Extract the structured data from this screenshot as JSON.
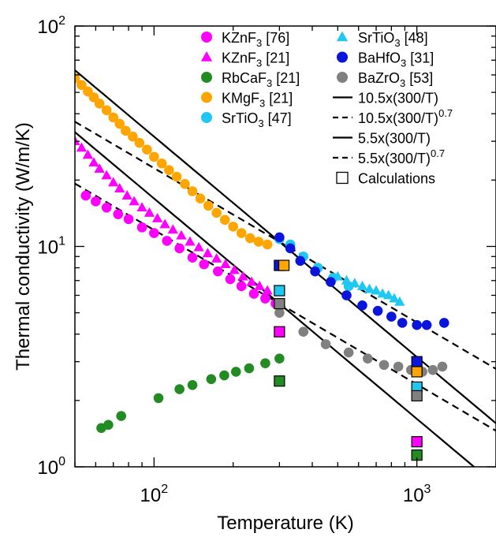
{
  "chart_data": {
    "type": "scatter",
    "xscale": "log",
    "yscale": "log",
    "xlim": [
      50,
      2000
    ],
    "ylim": [
      1,
      100
    ],
    "xlabel": "Temperature (K)",
    "ylabel": "Thermal conductivity (W/m/K)",
    "x_ticks": [
      {
        "value": 100,
        "base": "10",
        "exp": "2"
      },
      {
        "value": 1000,
        "base": "10",
        "exp": "3"
      }
    ],
    "y_ticks": [
      {
        "value": 1,
        "base": "10",
        "exp": "0"
      },
      {
        "value": 10,
        "base": "10",
        "exp": "1"
      },
      {
        "value": 100,
        "base": "10",
        "exp": "2"
      }
    ],
    "grid": false,
    "legend_position": "top-right",
    "series": [
      {
        "name": "KZnF3 [76]",
        "label_main": "KZnF",
        "label_sub": "3",
        "label_ref": " [76]",
        "color": "#ff00ff",
        "marker": "circle",
        "x": [
          55,
          60,
          66,
          73,
          80,
          90,
          100,
          112,
          125,
          140,
          155,
          175,
          195,
          215,
          240,
          265,
          290
        ],
        "y": [
          17,
          16,
          15,
          14,
          13.3,
          12.2,
          11.5,
          10.6,
          9.8,
          8.9,
          8.3,
          7.7,
          7.1,
          6.6,
          6.1,
          5.8,
          5.5
        ]
      },
      {
        "name": "KZnF3 [21]",
        "label_main": "KZnF",
        "label_sub": "3",
        "label_ref": " [21]",
        "color": "#ff00ff",
        "marker": "triangle",
        "x": [
          50,
          53,
          56,
          59,
          62,
          66,
          70,
          74,
          79,
          84,
          90,
          96,
          103,
          110,
          118,
          127,
          137,
          148,
          160,
          173,
          187,
          202,
          218,
          235,
          252,
          270
        ],
        "y": [
          30,
          28,
          26,
          24,
          22.5,
          21,
          19.5,
          18.3,
          17,
          16,
          15,
          14.2,
          13.4,
          12.6,
          11.9,
          11.2,
          10.5,
          9.9,
          9.3,
          8.8,
          8.3,
          7.8,
          7.3,
          6.9,
          6.6,
          6.3
        ]
      },
      {
        "name": "RbCaF3 [21]",
        "label_main": "RbCaF",
        "label_sub": "3",
        "label_ref": " [21]",
        "color": "#228b22",
        "marker": "circle",
        "x": [
          63,
          67,
          75,
          104,
          125,
          140,
          165,
          185,
          205,
          230,
          265,
          300
        ],
        "y": [
          1.5,
          1.55,
          1.7,
          2.05,
          2.25,
          2.35,
          2.5,
          2.6,
          2.7,
          2.8,
          2.95,
          3.1
        ]
      },
      {
        "name": "KMgF3 [21]",
        "label_main": "KMgF",
        "label_sub": "3",
        "label_ref": " [21]",
        "color": "#ffa500",
        "marker": "circle",
        "x": [
          50,
          53,
          56,
          59,
          62,
          66,
          70,
          74,
          78,
          83,
          88,
          94,
          100,
          107,
          114,
          122,
          131,
          140,
          150,
          161,
          173,
          186,
          200,
          215,
          232,
          250,
          270
        ],
        "y": [
          58,
          54,
          50.5,
          47.5,
          44.5,
          41.5,
          38.5,
          36,
          33.5,
          31.5,
          29.5,
          27.5,
          25.5,
          23.8,
          22.2,
          20.7,
          19.2,
          17.8,
          16.5,
          15.3,
          14.2,
          13.2,
          12.3,
          11.5,
          10.9,
          10.5,
          10.2
        ]
      },
      {
        "name": "SrTiO3 [47]",
        "label_main": "SrTiO",
        "label_sub": "3",
        "label_ref": " [47]",
        "color": "#1ec8f0",
        "marker": "circle",
        "x": [
          300,
          330,
          370,
          420,
          480,
          550
        ],
        "y": [
          10.8,
          10.2,
          9.0,
          8.0,
          7.2,
          6.6
        ]
      },
      {
        "name": "SrTiO3 [48]",
        "label_main": "SrTiO",
        "label_sub": "3",
        "label_ref": " [48]",
        "color": "#1ec8f0",
        "marker": "triangle",
        "x": [
          500,
          540,
          580,
          620,
          660,
          700,
          740,
          780,
          820,
          860
        ],
        "y": [
          7.3,
          7.0,
          6.8,
          6.6,
          6.4,
          6.3,
          6.1,
          6.0,
          5.8,
          5.6
        ]
      },
      {
        "name": "BaHfO3 [31]",
        "label_main": "BaHfO",
        "label_sub": "3",
        "label_ref": " [31]",
        "color": "#0a14dc",
        "marker": "circle",
        "x": [
          300,
          330,
          360,
          410,
          470,
          540,
          620,
          710,
          800,
          880,
          1000,
          1090,
          1270
        ],
        "y": [
          11.0,
          9.8,
          8.6,
          7.7,
          6.9,
          6.0,
          5.4,
          5.1,
          4.8,
          4.5,
          4.4,
          4.4,
          4.5
        ]
      },
      {
        "name": "BaZrO3 [53]",
        "label_main": "BaZrO",
        "label_sub": "3",
        "label_ref": " [53]",
        "color": "#808080",
        "marker": "circle",
        "x": [
          300,
          370,
          450,
          550,
          650,
          750,
          850,
          950,
          1050,
          1150,
          1250
        ],
        "y": [
          5.0,
          4.1,
          3.6,
          3.3,
          3.1,
          2.9,
          2.85,
          2.75,
          2.7,
          2.75,
          2.85
        ]
      }
    ],
    "fit_lines": [
      {
        "name": "10.5x(300/T)",
        "label_main": "10.5x(300/T)",
        "label_sup": "",
        "A": 10.5,
        "n": 1.0,
        "style": "solid"
      },
      {
        "name": "10.5x(300/T)^0.7",
        "label_main": "10.5x(300/T)",
        "label_sup": "0.7",
        "A": 10.5,
        "n": 0.7,
        "style": "dashed"
      },
      {
        "name": "5.5x(300/T)",
        "label_main": "5.5x(300/T)",
        "label_sup": "",
        "A": 5.5,
        "n": 1.0,
        "style": "solid"
      },
      {
        "name": "5.5x(300/T)^0.7",
        "label_main": "5.5x(300/T)",
        "label_sup": "0.7",
        "A": 5.5,
        "n": 0.7,
        "style": "dashed"
      }
    ],
    "calculations": {
      "name": "Calculations",
      "points": [
        {
          "x": 300,
          "y": 8.2,
          "color": "#0a14dc"
        },
        {
          "x": 312,
          "y": 8.2,
          "color": "#ffa500"
        },
        {
          "x": 300,
          "y": 6.3,
          "color": "#1ec8f0"
        },
        {
          "x": 300,
          "y": 5.5,
          "color": "#808080"
        },
        {
          "x": 300,
          "y": 4.1,
          "color": "#ff00ff"
        },
        {
          "x": 300,
          "y": 2.45,
          "color": "#228b22"
        },
        {
          "x": 1000,
          "y": 3.0,
          "color": "#0a14dc"
        },
        {
          "x": 1000,
          "y": 2.7,
          "color": "#ffa500"
        },
        {
          "x": 1000,
          "y": 2.3,
          "color": "#1ec8f0"
        },
        {
          "x": 1000,
          "y": 2.1,
          "color": "#808080"
        },
        {
          "x": 1000,
          "y": 1.3,
          "color": "#ff00ff"
        },
        {
          "x": 1000,
          "y": 1.13,
          "color": "#228b22"
        }
      ]
    }
  }
}
